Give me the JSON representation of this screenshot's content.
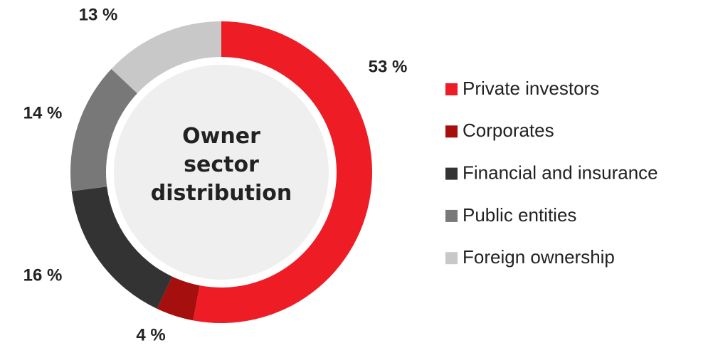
{
  "chart_data": {
    "type": "donut",
    "title": "Owner sector distribution",
    "categories": [
      "Private investors",
      "Corporates",
      "Financial and insurance",
      "Public entities",
      "Foreign ownership"
    ],
    "values": [
      53,
      4,
      16,
      14,
      13
    ],
    "value_labels": [
      "53 %",
      "4 %",
      "16 %",
      "14 %",
      "13 %"
    ],
    "colors": [
      "#ee1c25",
      "#a50f0d",
      "#333333",
      "#787878",
      "#c8c8c8"
    ],
    "legend": "right"
  }
}
